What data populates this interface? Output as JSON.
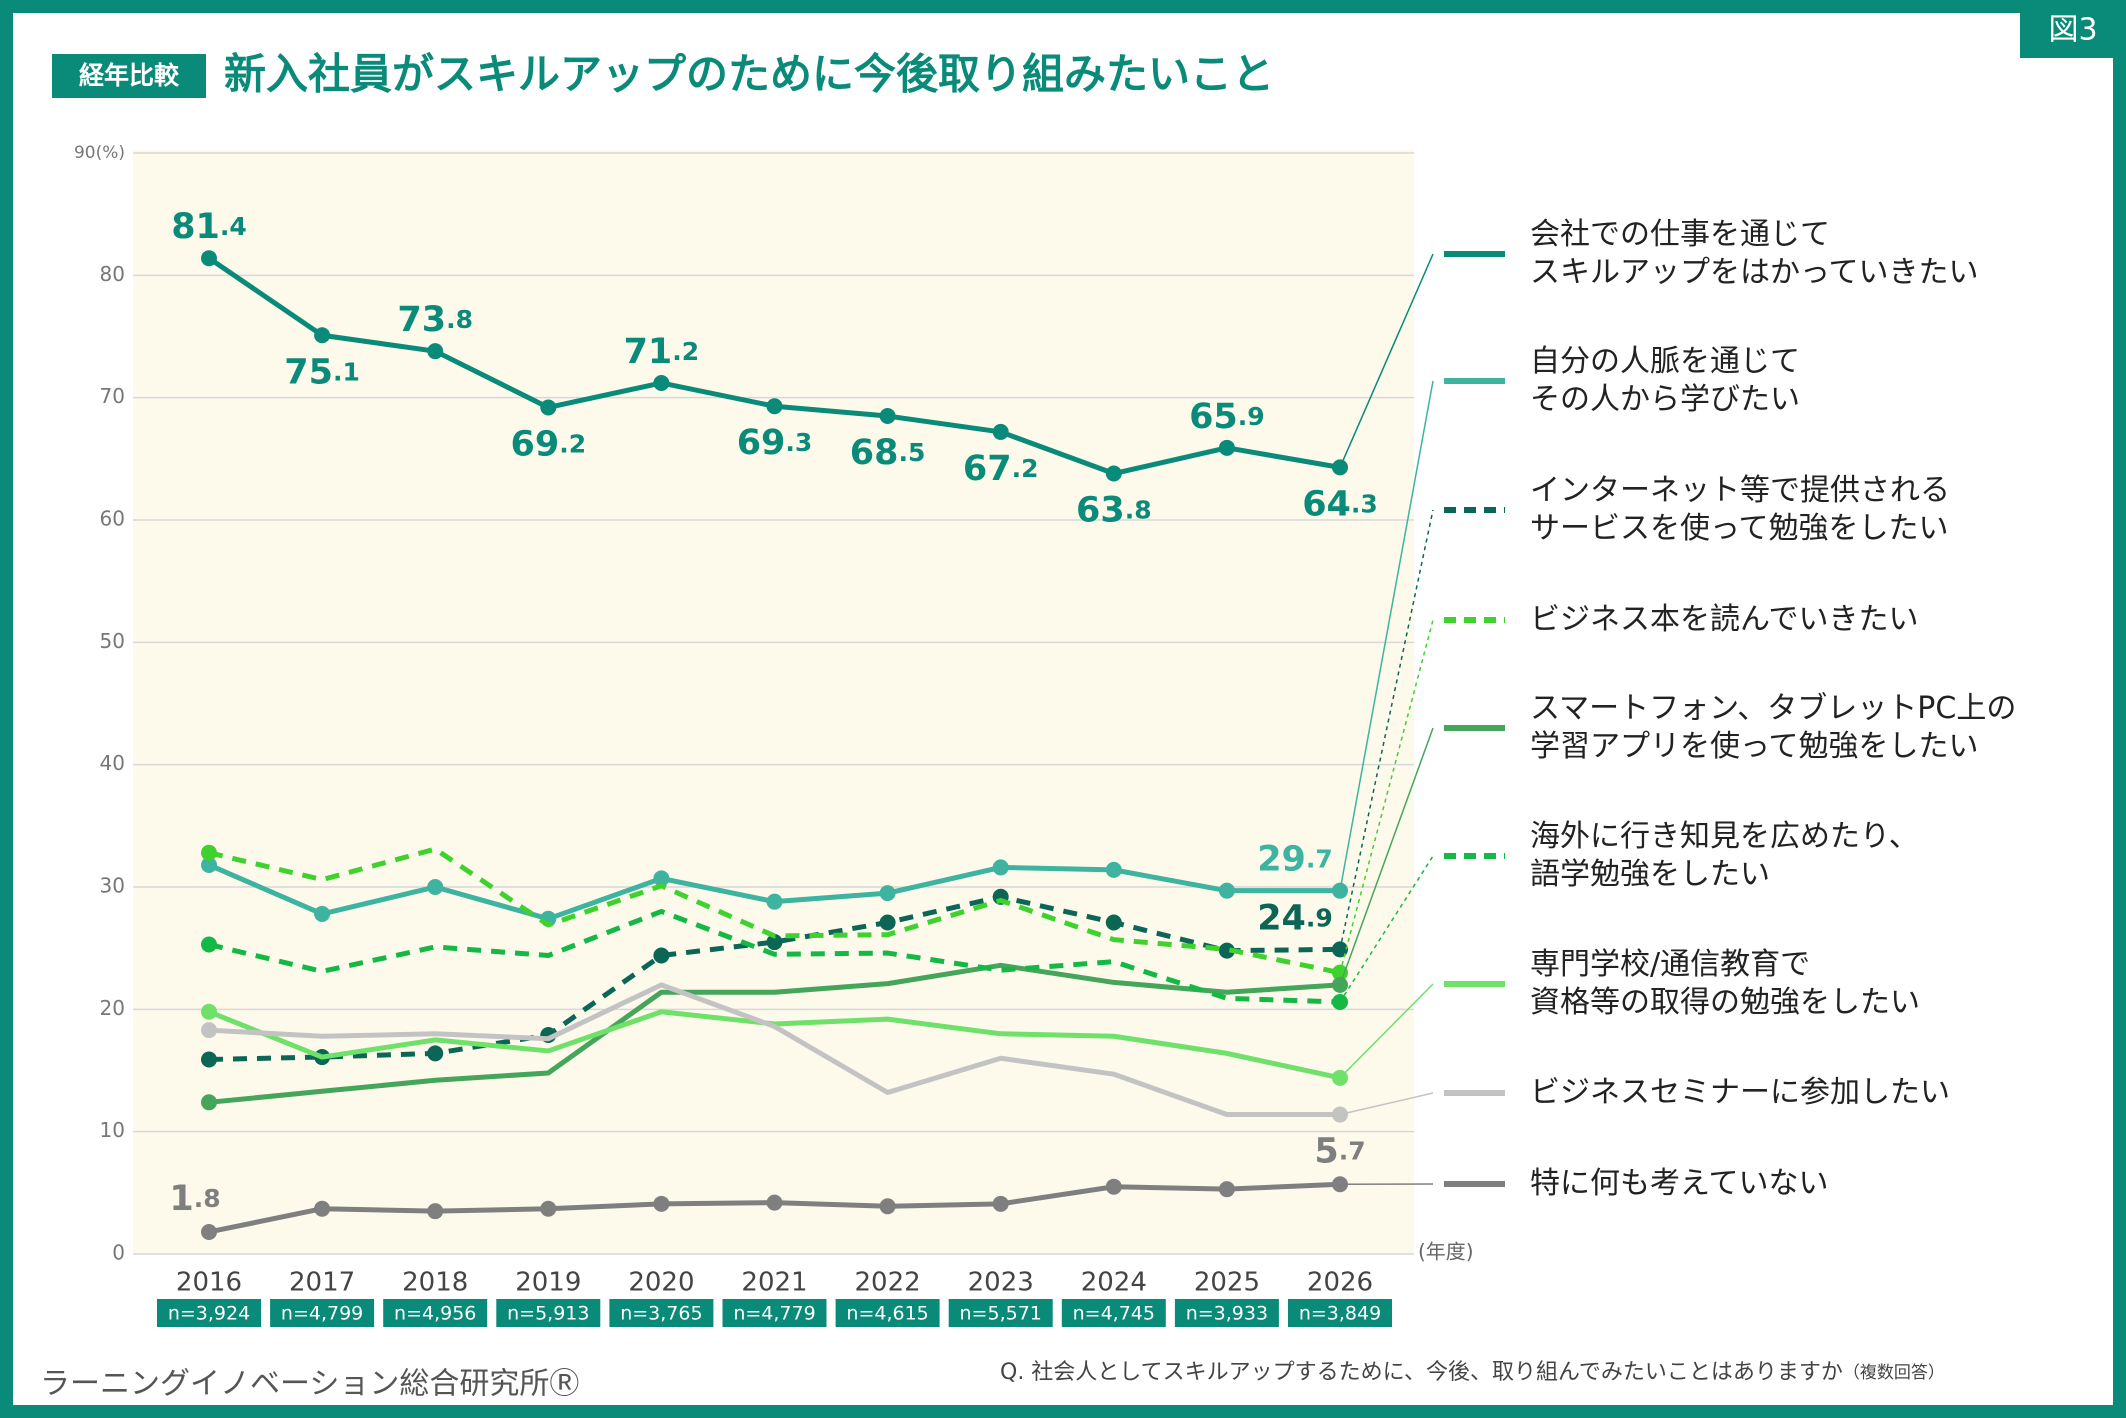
{
  "badge": "経年比較",
  "title": "新入社員がスキルアップのために今後取り組みたいこと",
  "figure_label": "図3",
  "source": "ラーニングイノベーション総合研究所Ⓡ",
  "question": "Q. 社会人としてスキルアップするために、今後、取り組んでみたいことはありますか",
  "question_note": "（複数回答）",
  "chart_data": {
    "type": "line",
    "categories": [
      "2016",
      "2017",
      "2018",
      "2019",
      "2020",
      "2021",
      "2022",
      "2023",
      "2024",
      "2025",
      "2026"
    ],
    "sample_sizes": [
      "n=3,924",
      "n=4,799",
      "n=4,956",
      "n=5,913",
      "n=3,765",
      "n=4,779",
      "n=4,615",
      "n=5,571",
      "n=4,745",
      "n=3,933",
      "n=3,849"
    ],
    "x_label": "(年度)",
    "ylim": [
      0,
      90
    ],
    "yticks": [
      0,
      10,
      20,
      30,
      40,
      50,
      60,
      70,
      80,
      {
        "value": 90,
        "label": "90(%)"
      }
    ],
    "grid": true,
    "series": [
      {
        "name": "会社での仕事を通じて\nスキルアップをはかっていきたい",
        "color": "#0a8a78",
        "dashed": false,
        "markers": "all",
        "values": [
          81.4,
          75.1,
          73.8,
          69.2,
          71.2,
          69.3,
          68.5,
          67.2,
          63.8,
          65.9,
          64.3
        ],
        "value_labels": [
          "81.4",
          "75.1",
          "73.8",
          "69.2",
          "71.2",
          "69.3",
          "68.5",
          "67.2",
          "63.8",
          "65.9",
          "64.3"
        ]
      },
      {
        "name": "自分の人脈を通じて\nその人から学びたい",
        "color": "#3db3a0",
        "dashed": false,
        "markers": "all",
        "values": [
          31.8,
          27.8,
          30.0,
          27.4,
          30.7,
          28.8,
          29.5,
          31.6,
          31.4,
          29.7,
          29.7
        ],
        "value_labels": [
          null,
          null,
          null,
          null,
          null,
          null,
          null,
          null,
          null,
          null,
          "29.7"
        ]
      },
      {
        "name": "インターネット等で提供される\nサービスを使って勉強をしたい",
        "color": "#0b6656",
        "dashed": true,
        "markers": "all",
        "values": [
          15.9,
          16.1,
          16.4,
          17.9,
          24.4,
          25.5,
          27.1,
          29.2,
          27.1,
          24.8,
          24.9
        ],
        "value_labels": [
          null,
          null,
          null,
          null,
          null,
          null,
          null,
          null,
          null,
          null,
          "24.9"
        ]
      },
      {
        "name": "ビジネス本を読んでいきたい",
        "color": "#3fd12e",
        "dashed": true,
        "markers": "ends",
        "values": [
          32.8,
          30.6,
          33.1,
          26.9,
          30.1,
          26.0,
          26.1,
          28.9,
          25.7,
          24.9,
          23.0
        ]
      },
      {
        "name": "スマートフォン、タブレットPC上の\n学習アプリを使って勉強をしたい",
        "color": "#45a55a",
        "dashed": false,
        "markers": "ends",
        "values": [
          12.4,
          13.3,
          14.2,
          14.8,
          21.4,
          21.4,
          22.1,
          23.6,
          22.2,
          21.4,
          22.0
        ]
      },
      {
        "name": "海外に行き知見を広めたり、\n語学勉強をしたい",
        "color": "#14b845",
        "dashed": true,
        "markers": "ends",
        "values": [
          25.3,
          23.1,
          25.1,
          24.4,
          28.0,
          24.5,
          24.6,
          23.2,
          23.9,
          20.9,
          20.6
        ]
      },
      {
        "name": "専門学校/通信教育で\n資格等の取得の勉強をしたい",
        "color": "#6fe06a",
        "dashed": false,
        "markers": "ends",
        "values": [
          19.8,
          16.1,
          17.5,
          16.6,
          19.8,
          18.8,
          19.2,
          18.0,
          17.8,
          16.4,
          14.4
        ]
      },
      {
        "name": "ビジネスセミナーに参加したい",
        "color": "#c3c3c3",
        "dashed": false,
        "markers": "ends",
        "values": [
          18.3,
          17.8,
          18.0,
          17.6,
          22.0,
          18.6,
          13.2,
          16.0,
          14.7,
          11.4,
          11.4
        ]
      },
      {
        "name": "特に何も考えていない",
        "color": "#7f7f7f",
        "dashed": false,
        "markers": "all",
        "values": [
          1.8,
          3.7,
          3.5,
          3.7,
          4.1,
          4.2,
          3.9,
          4.1,
          5.5,
          5.3,
          5.7
        ],
        "value_labels": [
          "1.8",
          null,
          null,
          null,
          null,
          null,
          null,
          null,
          null,
          null,
          "5.7"
        ]
      }
    ]
  }
}
